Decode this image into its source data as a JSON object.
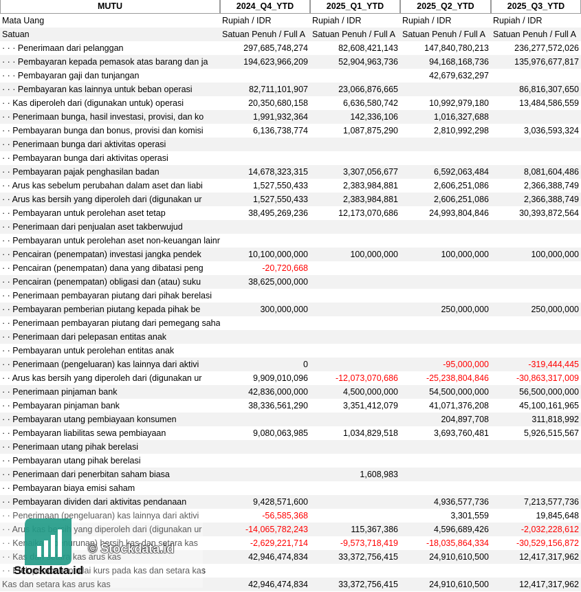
{
  "table": {
    "header": [
      "MUTU",
      "2024_Q4_YTD",
      "2025_Q1_YTD",
      "2025_Q2_YTD",
      "2025_Q3_YTD"
    ],
    "rows": [
      [
        "Mata Uang",
        "Rupiah / IDR",
        "Rupiah / IDR",
        "Rupiah / IDR",
        "Rupiah / IDR"
      ],
      [
        "Satuan",
        "Satuan Penuh / Full A",
        "Satuan Penuh / Full A",
        "Satuan Penuh / Full A",
        "Satuan Penuh / Full A"
      ],
      [
        "· · · Penerimaan dari pelanggan",
        "297,685,748,274",
        "82,608,421,143",
        "147,840,780,213",
        "236,277,572,026"
      ],
      [
        "· · · Pembayaran kepada pemasok atas barang dan ja",
        "194,623,966,209",
        "52,904,963,736",
        "94,168,168,736",
        "135,976,677,817"
      ],
      [
        "· · · Pembayaran gaji dan tunjangan",
        null,
        null,
        "42,679,632,297",
        null
      ],
      [
        "· · · Pembayaran kas lainnya untuk beban operasi",
        "82,711,101,907",
        "23,066,876,665",
        null,
        "86,816,307,650"
      ],
      [
        "· · Kas diperoleh dari (digunakan untuk) operasi",
        "20,350,680,158",
        "6,636,580,742",
        "10,992,979,180",
        "13,484,586,559"
      ],
      [
        "· · Penerimaan bunga, hasil investasi, provisi, dan ko",
        "1,991,932,364",
        "142,336,106",
        "1,016,327,688",
        null
      ],
      [
        "· · Pembayaran bunga dan bonus, provisi dan komisi",
        "6,136,738,774",
        "1,087,875,290",
        "2,810,992,298",
        "3,036,593,324"
      ],
      [
        "· · Penerimaan bunga dari aktivitas operasi",
        null,
        null,
        null,
        null
      ],
      [
        "· · Pembayaran bunga dari aktivitas operasi",
        null,
        null,
        null,
        null
      ],
      [
        "· · Pembayaran pajak penghasilan badan",
        "14,678,323,315",
        "3,307,056,677",
        "6,592,063,484",
        "8,081,604,486"
      ],
      [
        "· · Arus kas sebelum perubahan dalam aset dan liabi",
        "1,527,550,433",
        "2,383,984,881",
        "2,606,251,086",
        "2,366,388,749"
      ],
      [
        "· · Arus kas bersih yang diperoleh dari (digunakan ur",
        "1,527,550,433",
        "2,383,984,881",
        "2,606,251,086",
        "2,366,388,749"
      ],
      [
        "· · Pembayaran untuk perolehan aset tetap",
        "38,495,269,236",
        "12,173,070,686",
        "24,993,804,846",
        "30,393,872,564"
      ],
      [
        "· · Penerimaan dari penjualan aset takberwujud",
        null,
        null,
        null,
        null
      ],
      [
        "· · Pembayaran untuk perolehan aset non-keuangan lainnya",
        null,
        null,
        null,
        null
      ],
      [
        "· · Pencairan (penempatan) investasi jangka pendek",
        "10,100,000,000",
        "100,000,000",
        "100,000,000",
        "100,000,000"
      ],
      [
        "· · Pencairan (penempatan) dana yang dibatasi peng",
        "-20,720,668",
        null,
        null,
        null
      ],
      [
        "· · Pencairan (penempatan) obligasi dan (atau) suku",
        "38,625,000,000",
        null,
        null,
        null
      ],
      [
        "· · Penerimaan pembayaran piutang dari pihak berelasi",
        null,
        null,
        null,
        null
      ],
      [
        "· · Pembayaran pemberian piutang kepada pihak be",
        "300,000,000",
        null,
        "250,000,000",
        "250,000,000"
      ],
      [
        "· · Penerimaan pembayaran piutang dari pemegang saham",
        null,
        null,
        null,
        null
      ],
      [
        "· · Penerimaan dari pelepasan entitas anak",
        null,
        null,
        null,
        null
      ],
      [
        "· · Pembayaran untuk perolehan entitas anak",
        null,
        null,
        null,
        null
      ],
      [
        "· · Penerimaan (pengeluaran) kas lainnya dari aktivi",
        "0",
        null,
        "-95,000,000",
        "-319,444,445"
      ],
      [
        "· · Arus kas bersih yang diperoleh dari (digunakan ur",
        "9,909,010,096",
        "-12,073,070,686",
        "-25,238,804,846",
        "-30,863,317,009"
      ],
      [
        "· · Penerimaan pinjaman bank",
        "42,836,000,000",
        "4,500,000,000",
        "54,500,000,000",
        "56,500,000,000"
      ],
      [
        "· · Pembayaran pinjaman bank",
        "38,336,561,290",
        "3,351,412,079",
        "41,071,376,208",
        "45,100,161,965"
      ],
      [
        "· · Pembayaran utang pembiayaan konsumen",
        null,
        null,
        "204,897,708",
        "311,818,992"
      ],
      [
        "· · Pembayaran liabilitas sewa pembiayaan",
        "9,080,063,985",
        "1,034,829,518",
        "3,693,760,481",
        "5,926,515,567"
      ],
      [
        "· · Penerimaan utang pihak berelasi",
        null,
        null,
        null,
        null
      ],
      [
        "· · Pembayaran utang pihak berelasi",
        null,
        null,
        null,
        null
      ],
      [
        "· · Penerimaan dari penerbitan saham biasa",
        null,
        "1,608,983",
        null,
        null
      ],
      [
        "· · Pembayaran biaya emisi saham",
        null,
        null,
        null,
        null
      ],
      [
        "· · Pembayaran dividen dari aktivitas pendanaan",
        "9,428,571,600",
        null,
        "4,936,577,736",
        "7,213,577,736"
      ],
      [
        "· · Penerimaan (pengeluaran) kas lainnya dari aktivi",
        "-56,585,368",
        null,
        "3,301,559",
        "19,845,648"
      ],
      [
        "· · Arus kas bersih yang diperoleh dari (digunakan ur",
        "-14,065,782,243",
        "115,367,386",
        "4,596,689,426",
        "-2,032,228,612"
      ],
      [
        "· · Kenaikan (penurunan) bersih kas dan setara kas",
        "-2,629,221,714",
        "-9,573,718,419",
        "-18,035,864,334",
        "-30,529,156,872"
      ],
      [
        "· · Kas dan setara kas arus kas",
        "42,946,474,834",
        "33,372,756,415",
        "24,910,610,500",
        "12,417,317,962"
      ],
      [
        "· · Efek perubahan nilai kurs pada kas dan setara kas",
        null,
        null,
        null,
        null
      ],
      [
        "Kas dan setara kas arus kas",
        "42,946,474,834",
        "33,372,756,415",
        "24,910,610,500",
        "12,417,317,962"
      ]
    ]
  },
  "watermark": {
    "overlay": "© Stockdata.id",
    "logo_text": "Stockdata.id"
  }
}
